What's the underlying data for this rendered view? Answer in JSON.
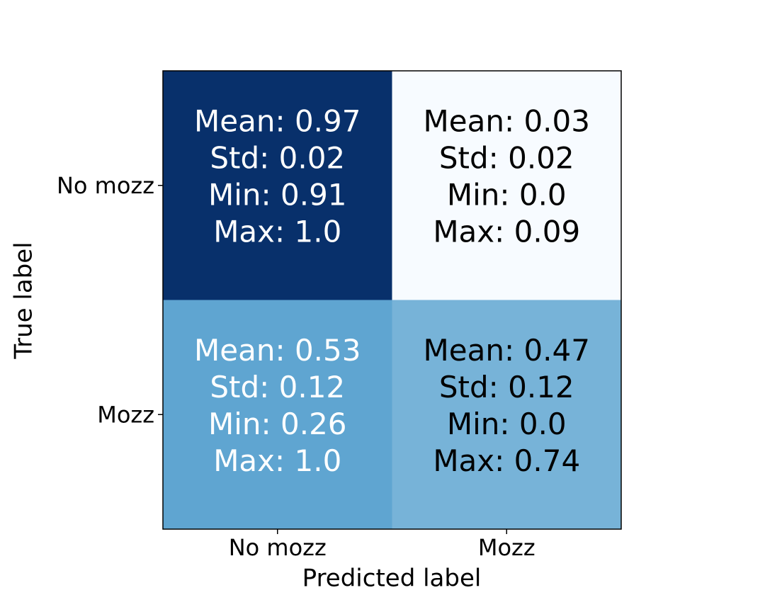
{
  "chart_data": {
    "type": "heatmap",
    "x_label": "Predicted label",
    "y_label": "True label",
    "x_categories": [
      "No mozz",
      "Mozz"
    ],
    "y_categories": [
      "No mozz",
      "Mozz"
    ],
    "values": [
      [
        0.97,
        0.03
      ],
      [
        0.53,
        0.47
      ]
    ],
    "value_labels": [
      [
        [
          "Mean: 0.97",
          "Std: 0.02",
          "Min: 0.91",
          "Max: 1.0"
        ],
        [
          "Mean: 0.03",
          "Std: 0.02",
          "Min: 0.0",
          "Max: 0.09"
        ]
      ],
      [
        [
          "Mean: 0.53",
          "Std: 0.12",
          "Min: 0.26",
          "Max: 1.0"
        ],
        [
          "Mean: 0.47",
          "Std: 0.12",
          "Min: 0.0",
          "Max: 0.74"
        ]
      ]
    ],
    "colors": [
      [
        "#08306b",
        "#f7fbff"
      ],
      [
        "#5fa5d1",
        "#77b3d8"
      ]
    ],
    "text_colors": [
      [
        "#ffffff",
        "#000000"
      ],
      [
        "#ffffff",
        "#000000"
      ]
    ]
  }
}
